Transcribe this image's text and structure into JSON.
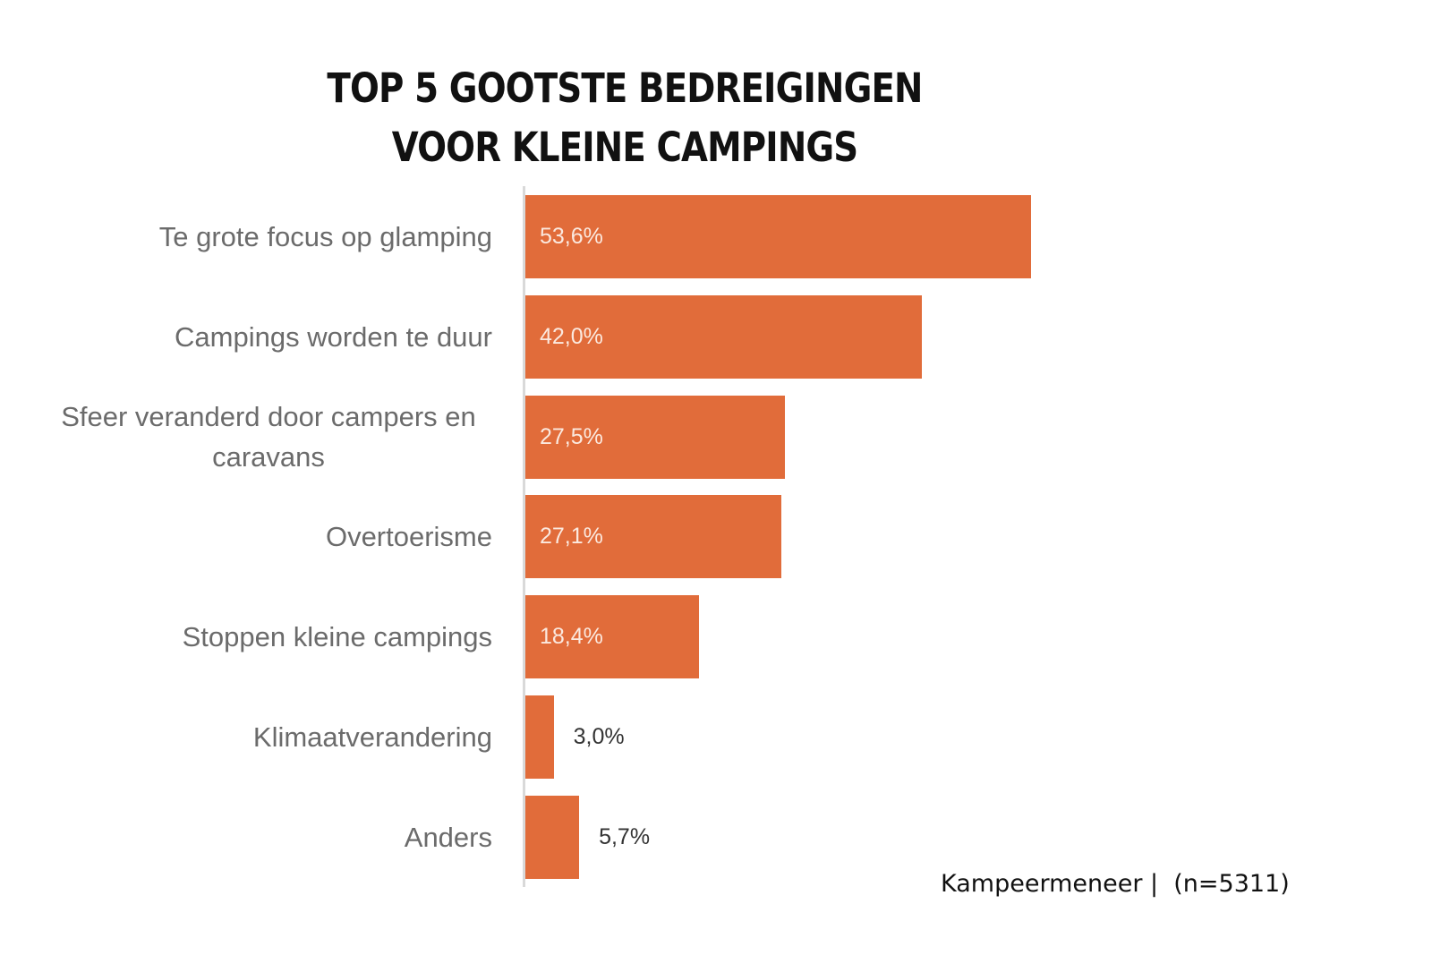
{
  "chart_data": {
    "type": "bar",
    "orientation": "horizontal",
    "title": "TOP 5 GOOTSTE BEDREIGINGEN VOOR KLEINE CAMPINGS",
    "title_lines": [
      "TOP 5 GOOTSTE BEDREIGINGEN",
      "VOOR KLEINE CAMPINGS"
    ],
    "categories": [
      "Te grote focus op glamping",
      "Campings worden te duur",
      "Sfeer veranderd door campers en caravans",
      "Overtoerisme",
      "Stoppen kleine campings",
      "Klimaatverandering",
      "Anders"
    ],
    "values": [
      53.6,
      42.0,
      27.5,
      27.1,
      18.4,
      3.0,
      5.7
    ],
    "value_labels": [
      "53,6%",
      "42,0%",
      "27,5%",
      "27,1%",
      "18,4%",
      "3,0%",
      "5,7%"
    ],
    "xlabel": "",
    "ylabel": "",
    "unit": "%",
    "grid": false,
    "legend": "none",
    "bar_color": "#e16c3a",
    "source": "Kampeermeneer |  (n=5311)"
  }
}
